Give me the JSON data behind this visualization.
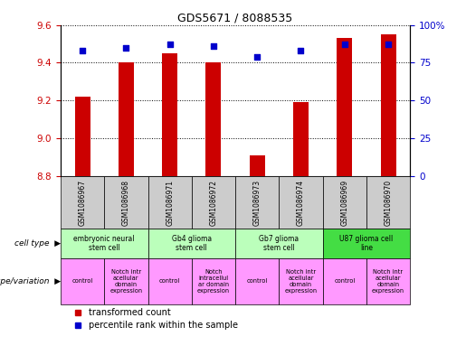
{
  "title": "GDS5671 / 8088535",
  "samples": [
    "GSM1086967",
    "GSM1086968",
    "GSM1086971",
    "GSM1086972",
    "GSM1086973",
    "GSM1086974",
    "GSM1086969",
    "GSM1086970"
  ],
  "red_values": [
    9.22,
    9.4,
    9.45,
    9.4,
    8.91,
    9.19,
    9.53,
    9.55
  ],
  "blue_values": [
    83,
    85,
    87,
    86,
    79,
    83,
    87,
    87
  ],
  "y_min": 8.8,
  "y_max": 9.6,
  "y_ticks_red": [
    8.8,
    9.0,
    9.2,
    9.4,
    9.6
  ],
  "y_ticks_blue": [
    0,
    25,
    50,
    75,
    100
  ],
  "cell_types": [
    {
      "label": "embryonic neural\nstem cell",
      "color": "#bbffbb",
      "span": [
        0,
        2
      ]
    },
    {
      "label": "Gb4 glioma\nstem cell",
      "color": "#bbffbb",
      "span": [
        2,
        4
      ]
    },
    {
      "label": "Gb7 glioma\nstem cell",
      "color": "#bbffbb",
      "span": [
        4,
        6
      ]
    },
    {
      "label": "U87 glioma cell\nline",
      "color": "#44dd44",
      "span": [
        6,
        8
      ]
    }
  ],
  "genotypes": [
    {
      "label": "control",
      "span": [
        0,
        1
      ]
    },
    {
      "label": "Notch intr\nacellular\ndomain\nexpression",
      "span": [
        1,
        2
      ]
    },
    {
      "label": "control",
      "span": [
        2,
        3
      ]
    },
    {
      "label": "Notch\nintracellul\nar domain\nexpression",
      "span": [
        3,
        4
      ]
    },
    {
      "label": "control",
      "span": [
        4,
        5
      ]
    },
    {
      "label": "Notch intr\nacellular\ndomain\nexpression",
      "span": [
        5,
        6
      ]
    },
    {
      "label": "control",
      "span": [
        6,
        7
      ]
    },
    {
      "label": "Notch intr\nacellular\ndomain\nexpression",
      "span": [
        7,
        8
      ]
    }
  ],
  "geno_color": "#ff99ff",
  "sample_bg": "#cccccc",
  "bar_color": "#cc0000",
  "dot_color": "#0000cc",
  "label_color_red": "#cc0000",
  "label_color_blue": "#0000cc"
}
